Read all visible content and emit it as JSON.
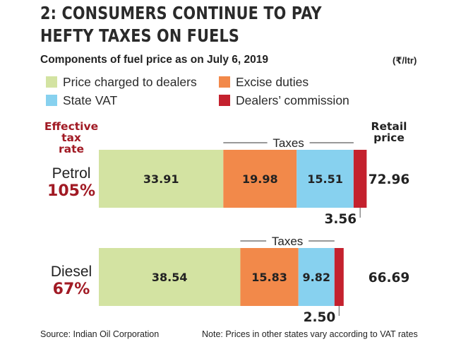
{
  "header": {
    "title_line1": "2: CONSUMERS CONTINUE TO PAY",
    "title_line2": "HEFTY TAXES ON FUELS",
    "subtitle": "Components of fuel price as on July 6, 2019",
    "unit": "(₹/ltr)"
  },
  "colors": {
    "price_charged": "#d3e3a2",
    "excise": "#f2894a",
    "vat": "#87d1ef",
    "commission": "#c4212e",
    "accent_red": "#a11a24"
  },
  "chart_data": {
    "type": "bar",
    "orientation": "horizontal",
    "stacked": true,
    "categories": [
      "Petrol",
      "Diesel"
    ],
    "series": [
      {
        "name": "Price charged to dealers",
        "values": [
          33.91,
          38.54
        ]
      },
      {
        "name": "Excise duties",
        "values": [
          19.98,
          15.83
        ]
      },
      {
        "name": "State VAT",
        "values": [
          15.51,
          9.82
        ]
      },
      {
        "name": "Dealers’ commission",
        "values": [
          3.56,
          2.5
        ]
      }
    ],
    "totals": [
      72.96,
      66.69
    ],
    "effective_tax_rate": [
      "105%",
      "67%"
    ],
    "column_headers": {
      "effective_tax_rate_line1": "Effective",
      "effective_tax_rate_line2": "tax",
      "effective_tax_rate_line3": "rate",
      "retail_price_line1": "Retail",
      "retail_price_line2": "price"
    },
    "taxes_label": "Taxes",
    "legend_placement": "top",
    "grid": false
  },
  "footer": {
    "source": "Source: Indian Oil Corporation",
    "note": "Note: Prices in other states vary according to VAT rates"
  }
}
